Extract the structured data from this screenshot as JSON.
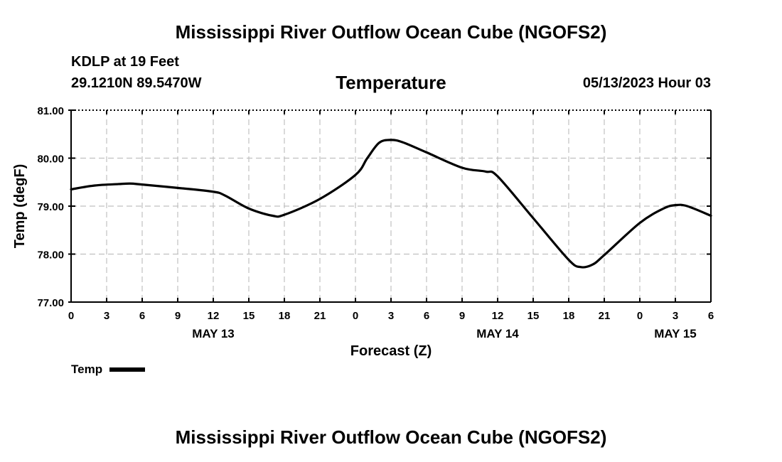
{
  "header": {
    "title": "Mississippi River Outflow Ocean Cube (NGOFS2)",
    "station_line1": "KDLP at 19 Feet",
    "station_line2": "29.1210N  89.5470W",
    "subtitle": "Temperature",
    "datetime": "05/13/2023 Hour 03"
  },
  "footer": {
    "title": "Mississippi River Outflow Ocean Cube (NGOFS2)"
  },
  "legend": {
    "label": "Temp"
  },
  "chart_data": {
    "type": "line",
    "title": "Temperature",
    "xlabel": "Forecast (Z)",
    "ylabel": "Temp (degF)",
    "xlim": [
      0,
      54
    ],
    "ylim": [
      77.0,
      81.0
    ],
    "grid": true,
    "legend_position": "bottom-left",
    "x_ticks": [
      0,
      3,
      6,
      9,
      12,
      15,
      18,
      21,
      24,
      27,
      30,
      33,
      36,
      39,
      42,
      45,
      48,
      51,
      54
    ],
    "x_tick_labels": [
      "0",
      "3",
      "6",
      "9",
      "12",
      "15",
      "18",
      "21",
      "0",
      "3",
      "6",
      "9",
      "12",
      "15",
      "18",
      "21",
      "0",
      "3",
      "6"
    ],
    "y_ticks": [
      77.0,
      78.0,
      79.0,
      80.0,
      81.0
    ],
    "y_tick_labels": [
      "77.00",
      "78.00",
      "79.00",
      "80.00",
      "81.00"
    ],
    "date_labels": [
      {
        "x": 12,
        "label": "MAY 13"
      },
      {
        "x": 36,
        "label": "MAY 14"
      },
      {
        "x": 51,
        "label": "MAY 15"
      }
    ],
    "series": [
      {
        "name": "Temp",
        "color": "#000000",
        "x": [
          0,
          2,
          4,
          5,
          6,
          9,
          12,
          13,
          15,
          17,
          18,
          21,
          24,
          25,
          26,
          27,
          28,
          30,
          33,
          35,
          36,
          39,
          42,
          43,
          44,
          45,
          48,
          50,
          51,
          52,
          54
        ],
        "y": [
          79.35,
          79.43,
          79.46,
          79.47,
          79.45,
          79.38,
          79.3,
          79.22,
          78.95,
          78.8,
          78.82,
          79.15,
          79.65,
          80.0,
          80.32,
          80.38,
          80.33,
          80.12,
          79.8,
          79.72,
          79.62,
          78.75,
          77.88,
          77.73,
          77.78,
          77.98,
          78.65,
          78.95,
          79.02,
          79.0,
          78.8
        ]
      }
    ]
  }
}
